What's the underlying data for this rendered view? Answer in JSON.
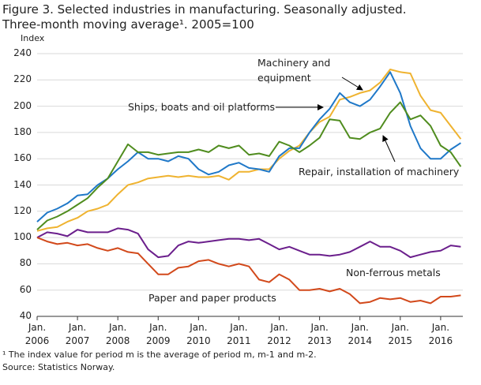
{
  "chart_data": {
    "type": "line",
    "title": "Figure 3. Selected industries in manufacturing. Seasonally adjusted.",
    "subtitle": "Three-month moving average¹. 2005=100",
    "y_label": "Index",
    "footnote": "¹ The index value for period m is the average of period m, m-1 and m-2.",
    "source": "Source: Statistics Norway.",
    "grid": true,
    "xlim": [
      2006,
      2016.55
    ],
    "ylim": [
      40,
      240
    ],
    "yticks": [
      40,
      60,
      80,
      100,
      120,
      140,
      160,
      180,
      200,
      220,
      240
    ],
    "xticks": [
      {
        "value": 2006,
        "label": "Jan. 2006"
      },
      {
        "value": 2007,
        "label": "Jan. 2007"
      },
      {
        "value": 2008,
        "label": "Jan. 2008"
      },
      {
        "value": 2009,
        "label": "Jan. 2009"
      },
      {
        "value": 2010,
        "label": "Jan. 2010"
      },
      {
        "value": 2011,
        "label": "Jan. 2011"
      },
      {
        "value": 2012,
        "label": "Jan. 2012"
      },
      {
        "value": 2013,
        "label": "Jan. 2013"
      },
      {
        "value": 2014,
        "label": "Jan. 2014"
      },
      {
        "value": 2015,
        "label": "Jan. 2015"
      },
      {
        "value": 2016,
        "label": "Jan. 2016"
      }
    ],
    "x": [
      2006,
      2006.25,
      2006.5,
      2006.75,
      2007,
      2007.25,
      2007.5,
      2007.75,
      2008,
      2008.25,
      2008.5,
      2008.75,
      2009,
      2009.25,
      2009.5,
      2009.75,
      2010,
      2010.25,
      2010.5,
      2010.75,
      2011,
      2011.25,
      2011.5,
      2011.75,
      2012,
      2012.25,
      2012.5,
      2012.75,
      2013,
      2013.25,
      2013.5,
      2013.75,
      2014,
      2014.25,
      2014.5,
      2014.75,
      2015,
      2015.25,
      2015.5,
      2015.75,
      2016,
      2016.25,
      2016.5
    ],
    "series": [
      {
        "name": "Machinery and equipment",
        "color": "#efb330",
        "values": [
          105,
          107,
          108,
          112,
          115,
          120,
          122,
          125,
          133,
          140,
          142,
          145,
          146,
          147,
          146,
          147,
          146,
          146,
          147,
          144,
          150,
          150,
          152,
          152,
          160,
          166,
          170,
          180,
          188,
          192,
          205,
          207,
          210,
          212,
          218,
          228,
          226,
          225,
          208,
          197,
          195,
          185,
          175
        ]
      },
      {
        "name": "Ships, boats and oil platforms",
        "color": "#1f78c8",
        "values": [
          112,
          119,
          122,
          126,
          132,
          133,
          140,
          145,
          152,
          158,
          165,
          160,
          160,
          158,
          162,
          160,
          152,
          148,
          150,
          155,
          157,
          153,
          152,
          150,
          162,
          168,
          168,
          180,
          190,
          198,
          210,
          203,
          200,
          205,
          215,
          226,
          210,
          185,
          168,
          160,
          160,
          167,
          172
        ]
      },
      {
        "name": "Repair, installation of machinery",
        "color": "#4f8c1e",
        "values": [
          106,
          113,
          116,
          120,
          125,
          130,
          138,
          145,
          158,
          171,
          165,
          165,
          163,
          164,
          165,
          165,
          167,
          165,
          170,
          168,
          170,
          163,
          164,
          162,
          173,
          170,
          165,
          170,
          176,
          190,
          189,
          176,
          175,
          180,
          183,
          195,
          203,
          190,
          193,
          185,
          170,
          165,
          154
        ]
      },
      {
        "name": "Non-ferrous metals",
        "color": "#6b1f8c",
        "values": [
          100,
          104,
          103,
          101,
          106,
          104,
          104,
          104,
          107,
          106,
          103,
          91,
          85,
          86,
          94,
          97,
          96,
          97,
          98,
          99,
          99,
          98,
          99,
          95,
          91,
          93,
          90,
          87,
          87,
          86,
          87,
          89,
          93,
          97,
          93,
          93,
          90,
          85,
          87,
          89,
          90,
          94,
          93
        ]
      },
      {
        "name": "Paper and paper products",
        "color": "#d2491b",
        "values": [
          100,
          97,
          95,
          96,
          94,
          95,
          92,
          90,
          92,
          89,
          88,
          80,
          72,
          72,
          77,
          78,
          82,
          83,
          80,
          78,
          80,
          78,
          68,
          66,
          72,
          68,
          60,
          60,
          61,
          59,
          61,
          57,
          50,
          51,
          54,
          53,
          54,
          51,
          52,
          50,
          55,
          55,
          56
        ]
      }
    ]
  }
}
